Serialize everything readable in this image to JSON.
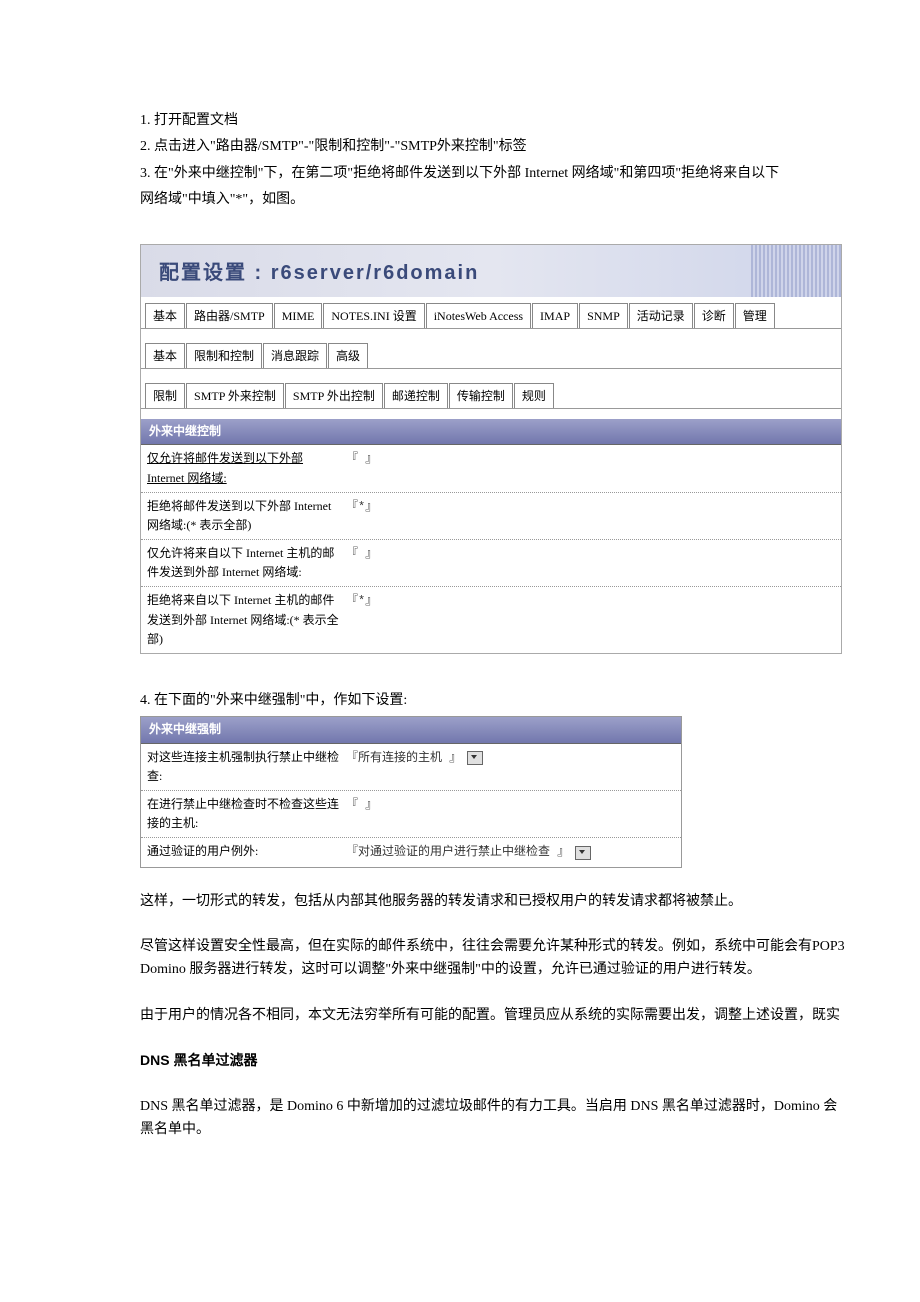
{
  "steps": {
    "s1": "1.  打开配置文档",
    "s2": "2.  点击进入\"路由器/SMTP\"-\"限制和控制\"-\"SMTP外来控制\"标签",
    "s3a": "3.  在\"外来中继控制\"下，在第二项\"拒绝将邮件发送到以下外部 Internet 网络域\"和第四项\"拒绝将来自以下",
    "s3b": "网络域\"中填入\"*\"，如图。"
  },
  "hdr_title": "配置设置  : r6server/r6domain",
  "tabs1": [
    "基本",
    "路由器/SMTP",
    "MIME",
    "NOTES.INI 设置",
    "iNotesWeb Access",
    "IMAP",
    "SNMP",
    "活动记录",
    "诊断",
    "管理"
  ],
  "tabs2": [
    "基本",
    "限制和控制",
    "消息跟踪",
    "高级"
  ],
  "tabs3": [
    "限制",
    "SMTP 外来控制",
    "SMTP 外出控制",
    "邮递控制",
    "传输控制",
    "规则"
  ],
  "sec1_title": "外来中继控制",
  "fields1": [
    {
      "label": "仅允许将邮件发送到以下外部 Internet 网络域:",
      "val": "『 』",
      "u": true
    },
    {
      "label": "拒绝将邮件发送到以下外部 Internet 网络域:(* 表示全部)",
      "val": "『*』"
    },
    {
      "label": "仅允许将来自以下 Internet 主机的邮件发送到外部 Internet 网络域:",
      "val": "『 』"
    },
    {
      "label": "拒绝将来自以下 Internet 主机的邮件发送到外部 Internet 网络域:(* 表示全部)",
      "val": "『*』"
    }
  ],
  "step4": "4.  在下面的\"外来中继强制\"中，作如下设置:",
  "sec2_title": "外来中继强制",
  "fields2": [
    {
      "label": "对这些连接主机强制执行禁止中继检查:",
      "val": "『所有连接的主机 』",
      "dd": true
    },
    {
      "label": "在进行禁止中继检查时不检查这些连接的主机:",
      "val": "『 』"
    },
    {
      "label": "通过验证的用户例外:",
      "val": "『对通过验证的用户进行禁止中继检查 』",
      "dd": true
    }
  ],
  "p1": "这样，一切形式的转发，包括从内部其他服务器的转发请求和已授权用户的转发请求都将被禁止。",
  "p2": "尽管这样设置安全性最高，但在实际的邮件系统中，往往会需要允许某种形式的转发。例如，系统中可能会有POP3",
  "p2b": "Domino 服务器进行转发，这时可以调整\"外来中继强制\"中的设置，允许已通过验证的用户进行转发。",
  "p3": "由于用户的情况各不相同，本文无法穷举所有可能的配置。管理员应从系统的实际需要出发，调整上述设置，既实",
  "h2": "DNS 黑名单过滤器",
  "p4": "DNS 黑名单过滤器，是 Domino 6 中新增加的过滤垃圾邮件的有力工具。当启用 DNS 黑名单过滤器时，Domino 会",
  "p4b": "黑名单中。"
}
